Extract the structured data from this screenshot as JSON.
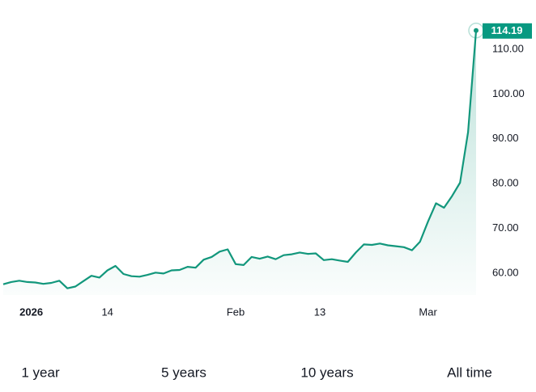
{
  "chart_data": {
    "type": "area",
    "x": [
      0,
      1,
      2,
      3,
      4,
      5,
      6,
      7,
      8,
      9,
      10,
      11,
      12,
      13,
      14,
      15,
      16,
      17,
      18,
      19,
      20,
      21,
      22,
      23,
      24,
      25,
      26,
      27,
      28,
      29,
      30,
      31,
      32,
      33,
      34,
      35,
      36,
      37,
      38,
      39,
      40,
      41,
      42,
      43,
      44,
      45,
      46,
      47,
      48,
      49,
      50,
      51,
      52,
      53,
      54,
      55,
      56,
      57,
      58,
      59
    ],
    "values": [
      57.5,
      58.0,
      58.3,
      58.0,
      57.9,
      57.6,
      57.8,
      58.3,
      56.6,
      57.0,
      58.2,
      59.4,
      59.0,
      60.6,
      61.6,
      59.8,
      59.3,
      59.2,
      59.6,
      60.1,
      59.9,
      60.6,
      60.7,
      61.4,
      61.2,
      63.0,
      63.6,
      64.8,
      65.3,
      62.0,
      61.8,
      63.6,
      63.2,
      63.7,
      63.1,
      64.0,
      64.2,
      64.6,
      64.3,
      64.4,
      62.9,
      63.1,
      62.8,
      62.5,
      64.6,
      66.4,
      66.3,
      66.6,
      66.2,
      66.0,
      65.8,
      65.1,
      67.0,
      71.5,
      75.6,
      74.6,
      77.2,
      80.2,
      91.5,
      114.19
    ],
    "color": "#12977c",
    "xlim": [
      0,
      59
    ],
    "xticks": [
      {
        "value": 3.5,
        "label": "2026"
      },
      {
        "value": 13,
        "label": "14"
      },
      {
        "value": 29,
        "label": "Feb"
      },
      {
        "value": 39.5,
        "label": "13"
      },
      {
        "value": 53,
        "label": "Mar"
      }
    ],
    "ylim": [
      55.1,
      115.6
    ],
    "yticks": [
      {
        "value": 60,
        "label": "60.00"
      },
      {
        "value": 70,
        "label": "70.00"
      },
      {
        "value": 80,
        "label": "80.00"
      },
      {
        "value": 90,
        "label": "90.00"
      },
      {
        "value": 100,
        "label": "100.00"
      },
      {
        "value": 110,
        "label": "110.00"
      }
    ],
    "ranges": [
      "1 year",
      "5 years",
      "10 years",
      "All time"
    ]
  }
}
